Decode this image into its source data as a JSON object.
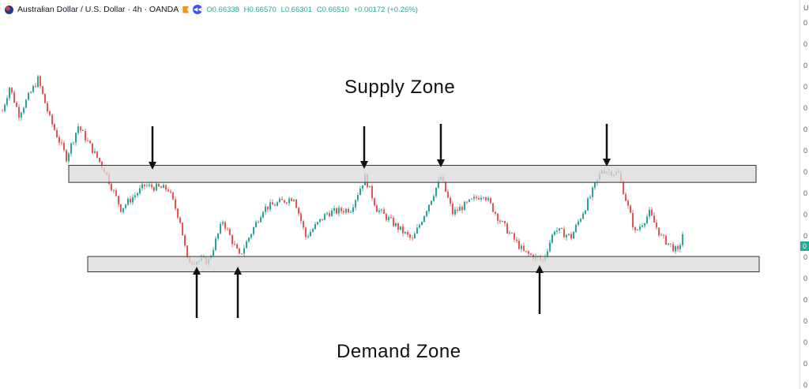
{
  "header": {
    "symbol": "Australian Dollar / U.S. Dollar · 4h · OANDA",
    "open": "O0.66338",
    "high": "H0.66570",
    "low": "L0.66301",
    "close": "C0.66510",
    "change": "+0.00172 (+0.26%)"
  },
  "axis": {
    "currency_label": "U",
    "tick_labels": [
      "0",
      "0",
      "0",
      "0",
      "0",
      "0",
      "0",
      "0",
      "0",
      "0",
      "0",
      "0",
      "0",
      "0",
      "0",
      "0",
      "0",
      "0"
    ],
    "last_price_label": "0"
  },
  "colors": {
    "up": "#26a69a",
    "down": "#ef5350",
    "zone_fill": "#d9d9d9",
    "zone_stroke": "#333333"
  },
  "chart_data": {
    "type": "candlestick",
    "symbol": "AUDUSD 4h",
    "last_close": 0.6651,
    "approx_path": [
      {
        "bar": 0,
        "close": 0.6796
      },
      {
        "bar": 3,
        "close": 0.6824
      },
      {
        "bar": 7,
        "close": 0.6792
      },
      {
        "bar": 15,
        "close": 0.6833
      },
      {
        "bar": 20,
        "close": 0.6787
      },
      {
        "bar": 27,
        "close": 0.6741
      },
      {
        "bar": 32,
        "close": 0.6778
      },
      {
        "bar": 43,
        "close": 0.6727
      },
      {
        "bar": 50,
        "close": 0.6681
      },
      {
        "bar": 60,
        "close": 0.6708
      },
      {
        "bar": 70,
        "close": 0.6704
      },
      {
        "bar": 75,
        "close": 0.6667
      },
      {
        "bar": 78,
        "close": 0.662
      },
      {
        "bar": 87,
        "close": 0.662
      },
      {
        "bar": 93,
        "close": 0.6667
      },
      {
        "bar": 100,
        "close": 0.6625
      },
      {
        "bar": 110,
        "close": 0.6681
      },
      {
        "bar": 123,
        "close": 0.6695
      },
      {
        "bar": 128,
        "close": 0.6648
      },
      {
        "bar": 137,
        "close": 0.6676
      },
      {
        "bar": 147,
        "close": 0.6681
      },
      {
        "bar": 153,
        "close": 0.6718
      },
      {
        "bar": 158,
        "close": 0.6681
      },
      {
        "bar": 173,
        "close": 0.6644
      },
      {
        "bar": 185,
        "close": 0.6718
      },
      {
        "bar": 190,
        "close": 0.6676
      },
      {
        "bar": 203,
        "close": 0.6699
      },
      {
        "bar": 210,
        "close": 0.6667
      },
      {
        "bar": 220,
        "close": 0.663
      },
      {
        "bar": 228,
        "close": 0.662
      },
      {
        "bar": 233,
        "close": 0.6657
      },
      {
        "bar": 240,
        "close": 0.6648
      },
      {
        "bar": 248,
        "close": 0.6695
      },
      {
        "bar": 253,
        "close": 0.6727
      },
      {
        "bar": 260,
        "close": 0.6722
      },
      {
        "bar": 267,
        "close": 0.6653
      },
      {
        "bar": 273,
        "close": 0.6676
      },
      {
        "bar": 278,
        "close": 0.6648
      },
      {
        "bar": 285,
        "close": 0.663
      },
      {
        "bar": 287,
        "close": 0.6651
      }
    ],
    "zones": [
      {
        "label": "Supply Zone",
        "top": 0.6732,
        "bottom": 0.6712
      },
      {
        "label": "Demand Zone",
        "top": 0.6625,
        "bottom": 0.6607
      }
    ],
    "annotations": {
      "supply_arrows": 4,
      "demand_arrows": 3
    }
  }
}
